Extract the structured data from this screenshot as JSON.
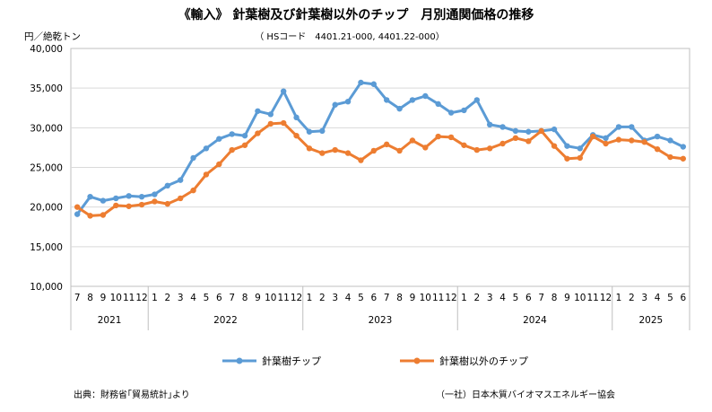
{
  "chart_data": {
    "type": "line",
    "title": "《輸入》 針葉樹及び針葉樹以外のチップ　月別通関価格の推移",
    "subtitle": "（ HSコード　4401.21-000,  4401.22-000）",
    "ylabel": "円／絶乾トン",
    "xlabel": "",
    "ylim": [
      10000,
      40000
    ],
    "yticks": [
      10000,
      15000,
      20000,
      25000,
      30000,
      35000,
      40000
    ],
    "ytick_labels": [
      "10,000",
      "15,000",
      "20,000",
      "25,000",
      "30,000",
      "35,000",
      "40,000"
    ],
    "grid": true,
    "categories": [
      "7",
      "8",
      "9",
      "10",
      "11",
      "12",
      "1",
      "2",
      "3",
      "4",
      "5",
      "6",
      "7",
      "8",
      "9",
      "10",
      "11",
      "12",
      "1",
      "2",
      "3",
      "4",
      "5",
      "6",
      "7",
      "8",
      "9",
      "10",
      "11",
      "12",
      "1",
      "2",
      "3",
      "4",
      "5",
      "6",
      "7",
      "8",
      "9",
      "10",
      "11",
      "12",
      "1",
      "2",
      "3",
      "4",
      "5",
      "6"
    ],
    "years": [
      {
        "label": "2021",
        "start": 0,
        "count": 6
      },
      {
        "label": "2022",
        "start": 6,
        "count": 12
      },
      {
        "label": "2023",
        "start": 18,
        "count": 12
      },
      {
        "label": "2024",
        "start": 30,
        "count": 12
      },
      {
        "label": "2025",
        "start": 42,
        "count": 6
      }
    ],
    "series": [
      {
        "name": "針葉樹チップ",
        "color": "#5b9bd5",
        "values": [
          19100,
          21300,
          20800,
          21100,
          21400,
          21300,
          21600,
          22700,
          23400,
          26200,
          27400,
          28600,
          29200,
          29000,
          32100,
          31700,
          34600,
          31300,
          29500,
          29600,
          32900,
          33300,
          35700,
          35500,
          33500,
          32400,
          33500,
          34000,
          33000,
          31900,
          32200,
          33500,
          30400,
          30100,
          29600,
          29500,
          29600,
          29800,
          27700,
          27400,
          29100,
          28700,
          30100,
          30100,
          28400,
          28900,
          28400,
          27600
        ]
      },
      {
        "name": "針葉樹以外のチップ",
        "color": "#ed7d31",
        "values": [
          20000,
          18900,
          19000,
          20200,
          20100,
          20300,
          20700,
          20400,
          21100,
          22100,
          24100,
          25400,
          27200,
          27800,
          29300,
          30500,
          30600,
          29000,
          27400,
          26800,
          27200,
          26800,
          25900,
          27100,
          27900,
          27100,
          28400,
          27500,
          28900,
          28800,
          27800,
          27200,
          27400,
          28000,
          28700,
          28300,
          29600,
          27700,
          26100,
          26200,
          28900,
          28000,
          28500,
          28400,
          28200,
          27300,
          26300,
          26100
        ]
      }
    ]
  },
  "footer": {
    "source": "出典：財務省｢貿易統計｣より",
    "credit": "（一社）日本木質バイオマスエネルギー協会"
  }
}
